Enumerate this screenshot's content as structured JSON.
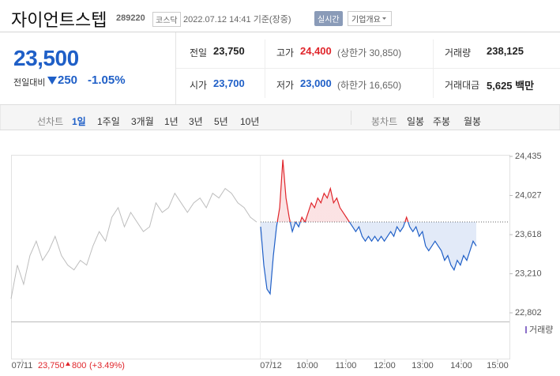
{
  "header": {
    "name": "자이언트스텝",
    "code": "289220",
    "market": "코스닥",
    "timestamp": "2022.07.12 14:41 기준(장중)",
    "realtime_button": "실시간",
    "company_button": "기업개요"
  },
  "quote": {
    "price": "23,500",
    "change_label": "전일대비",
    "change": "250",
    "change_pct": "-1.05%"
  },
  "stats": [
    [
      {
        "label": "전일",
        "value": "23,750"
      },
      {
        "label": "고가",
        "value": "24,400",
        "note": "(상한가 30,850)"
      },
      {
        "label": "거래량",
        "value": "238,125"
      }
    ],
    [
      {
        "label": "시가",
        "value": "23,700"
      },
      {
        "label": "저가",
        "value": "23,000",
        "note": "(하한가 16,650)"
      },
      {
        "label": "거래대금",
        "value": "5,625 백만"
      }
    ]
  ],
  "tabs": {
    "line_label": "선차트",
    "line": [
      "1일",
      "1주일",
      "3개월",
      "1년",
      "3년",
      "5년",
      "10년"
    ],
    "candle_label": "봉차트",
    "candle": [
      "일봉",
      "주봉",
      "월봉"
    ]
  },
  "chart_data": {
    "type": "line",
    "ylim": [
      22802,
      24435
    ],
    "yticks": [
      {
        "value": 24435,
        "label": "24,435"
      },
      {
        "value": 24027,
        "label": "24,027"
      },
      {
        "value": 23618,
        "label": "23,618"
      },
      {
        "value": 23210,
        "label": "23,210"
      },
      {
        "value": 22802,
        "label": "22,802"
      }
    ],
    "baseline": 23750,
    "xlabels": [
      "07/11",
      "07/12",
      "10:00",
      "11:00",
      "12:00",
      "13:00",
      "14:00",
      "15:00"
    ],
    "prev_day_summary": {
      "price": "23,750",
      "change": "800",
      "change_pct": "(+3.49%)"
    },
    "volume_label": "거래량",
    "up_color": "#e0252b",
    "down_color": "#1f5fc7",
    "series": [
      {
        "color": "#bdbdbd",
        "values": [
          22950,
          23300,
          23100,
          23400,
          23550,
          23350,
          23450,
          23600,
          23400,
          23300,
          23250,
          23350,
          23300,
          23500,
          23650,
          23550,
          23800,
          23900,
          23700,
          23850,
          23750,
          23650,
          23700,
          23950,
          23850,
          23900,
          24050,
          23950,
          23850,
          23950,
          24000,
          23900,
          24050,
          24000,
          24100,
          24050,
          23950,
          23900,
          23800,
          23750
        ]
      },
      {
        "values": [
          23700,
          23300,
          23050,
          23000,
          23400,
          23700,
          23900,
          24400,
          24000,
          23800,
          23650,
          23750,
          23700,
          23800,
          23750,
          23850,
          23950,
          23900,
          24000,
          23950,
          24050,
          24000,
          24100,
          23950,
          24000,
          23900,
          23850,
          23800,
          23750,
          23700,
          23650,
          23700,
          23600,
          23550,
          23600,
          23550,
          23600,
          23550,
          23600,
          23550,
          23600,
          23650,
          23600,
          23700,
          23650,
          23700,
          23800,
          23700,
          23650,
          23700,
          23600,
          23650,
          23500,
          23450,
          23500,
          23550,
          23500,
          23450,
          23350,
          23400,
          23300,
          23250,
          23350,
          23300,
          23400,
          23350,
          23450,
          23550,
          23500
        ]
      }
    ]
  }
}
